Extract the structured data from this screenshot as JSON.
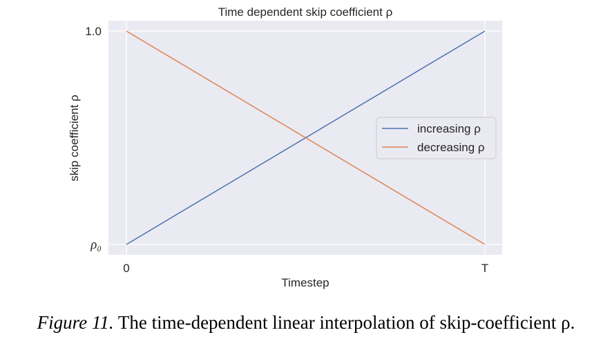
{
  "chart_data": {
    "type": "line",
    "title": "Time dependent skip coefficient ρ",
    "xlabel": "Timestep",
    "ylabel": "skip coefficient ρ",
    "x": [
      0,
      1
    ],
    "xticks": [
      "0",
      "T"
    ],
    "yticks": [
      "ρ₀",
      "1.0"
    ],
    "xlim": [
      0,
      1
    ],
    "ylim": [
      0,
      1
    ],
    "grid": true,
    "legend_position": "center-right",
    "series": [
      {
        "name": "increasing ρ",
        "values": [
          0,
          1
        ],
        "color": "#4c72b0"
      },
      {
        "name": "decreasing ρ",
        "values": [
          1,
          0
        ],
        "color": "#dd8452"
      }
    ]
  },
  "caption": {
    "label": "Figure 11.",
    "text": " The time-dependent linear interpolation of skip-coefficient ρ."
  },
  "colors": {
    "plot_background": "#eaeaf2",
    "grid": "#ffffff"
  }
}
